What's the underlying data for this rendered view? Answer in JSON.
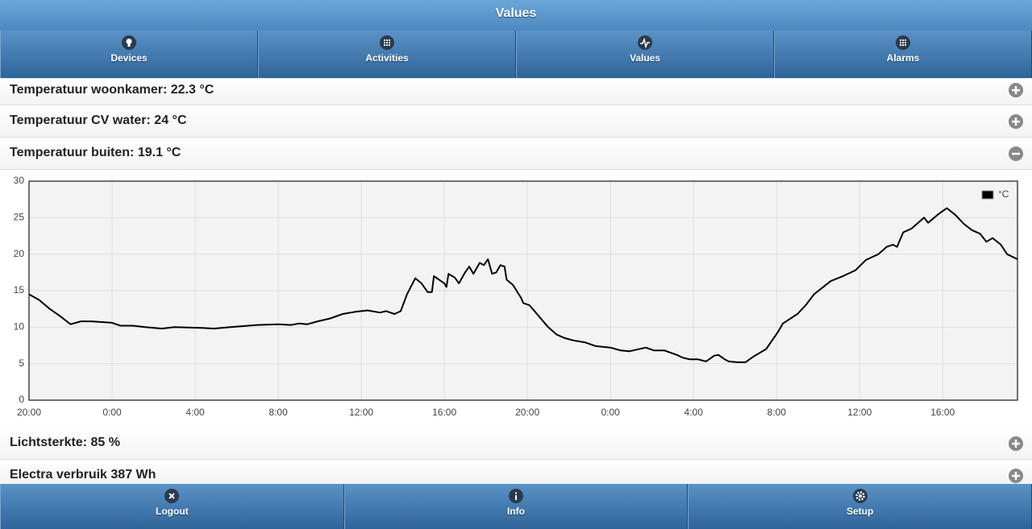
{
  "header": {
    "title": "Values"
  },
  "tabs": [
    "Devices",
    "Activities",
    "Values",
    "Alarms"
  ],
  "items": [
    "Temperatuur woonkamer: 22.3 °C",
    "Temperatuur CV water: 24 °C",
    "Temperatuur buiten: 19.1 °C",
    "Lichtsterkte: 85 %",
    "Electra verbruik 387 Wh"
  ],
  "chart_data": {
    "type": "line",
    "grid": true,
    "legend": "upper right",
    "xlim": [
      0,
      47.6
    ],
    "ylim": [
      0,
      30
    ],
    "yticks": [
      0,
      5,
      10,
      15,
      20,
      25,
      30
    ],
    "xticks": [
      {
        "value": 0,
        "label": "20:00"
      },
      {
        "value": 4,
        "label": "0:00"
      },
      {
        "value": 8,
        "label": "4:00"
      },
      {
        "value": 12,
        "label": "8:00"
      },
      {
        "value": 16,
        "label": "12:00"
      },
      {
        "value": 20,
        "label": "16:00"
      },
      {
        "value": 24,
        "label": "20:00"
      },
      {
        "value": 28,
        "label": "0:00"
      },
      {
        "value": 32,
        "label": "4:00"
      },
      {
        "value": 36,
        "label": "8:00"
      },
      {
        "value": 40,
        "label": "12:00"
      },
      {
        "value": 44,
        "label": "16:00"
      }
    ],
    "x": [
      0,
      0.5,
      1.0,
      1.5,
      2.0,
      2.5,
      3.0,
      4.0,
      4.4,
      5.0,
      5.6,
      6.4,
      7.0,
      8.3,
      8.9,
      9.7,
      11.0,
      12.0,
      12.6,
      13.0,
      13.4,
      13.9,
      14.5,
      15.1,
      15.7,
      16.3,
      16.9,
      17.2,
      17.6,
      17.9,
      18.2,
      18.6,
      18.9,
      19.2,
      19.4,
      19.5,
      20.0,
      20.1,
      20.2,
      20.5,
      20.7,
      21.0,
      21.2,
      21.4,
      21.7,
      21.9,
      22.1,
      22.3,
      22.5,
      22.7,
      22.9,
      23.0,
      23.3,
      23.7,
      23.8,
      24.1,
      24.4,
      25.0,
      25.4,
      25.8,
      26.2,
      26.8,
      27.3,
      28.0,
      28.5,
      28.9,
      29.7,
      30.1,
      30.6,
      31.2,
      31.5,
      31.8,
      32.2,
      32.6,
      33.0,
      33.2,
      33.5,
      33.7,
      34.1,
      34.5,
      34.9,
      35.5,
      36.1,
      36.3,
      37.0,
      37.4,
      37.8,
      38.6,
      39.2,
      39.8,
      40.3,
      40.9,
      41.3,
      41.6,
      41.8,
      42.1,
      42.5,
      43.1,
      43.3,
      43.8,
      44.2,
      44.6,
      45.0,
      45.4,
      45.8,
      46.1,
      46.4,
      46.8,
      47.1,
      47.6
    ],
    "series": [
      {
        "name": "°C",
        "color": "#000000",
        "values": [
          14.5,
          13.7,
          12.5,
          11.5,
          10.4,
          10.8,
          10.8,
          10.6,
          10.2,
          10.2,
          10.0,
          9.8,
          10.0,
          9.9,
          9.8,
          10.0,
          10.3,
          10.4,
          10.3,
          10.5,
          10.4,
          10.8,
          11.2,
          11.8,
          12.1,
          12.3,
          12.0,
          12.2,
          11.8,
          12.2,
          14.5,
          16.7,
          16.0,
          14.8,
          14.8,
          17.0,
          16.0,
          15.5,
          17.3,
          16.8,
          16.0,
          17.5,
          18.3,
          17.3,
          18.8,
          18.5,
          19.3,
          17.3,
          17.5,
          18.5,
          18.3,
          16.5,
          15.8,
          14.0,
          13.3,
          13.0,
          12.0,
          10.0,
          9.0,
          8.5,
          8.2,
          7.9,
          7.4,
          7.2,
          6.8,
          6.7,
          7.2,
          6.8,
          6.8,
          6.2,
          5.8,
          5.6,
          5.6,
          5.3,
          6.1,
          6.2,
          5.6,
          5.3,
          5.2,
          5.2,
          6.0,
          7.0,
          9.5,
          10.5,
          11.8,
          13.0,
          14.5,
          16.3,
          17.0,
          17.8,
          19.2,
          20.0,
          21.0,
          21.3,
          21.0,
          23.0,
          23.5,
          25.0,
          24.3,
          25.5,
          26.3,
          25.4,
          24.2,
          23.3,
          22.8,
          21.7,
          22.2,
          21.3,
          20.0,
          19.3
        ]
      }
    ]
  },
  "footer": [
    "Logout",
    "Info",
    "Setup"
  ]
}
